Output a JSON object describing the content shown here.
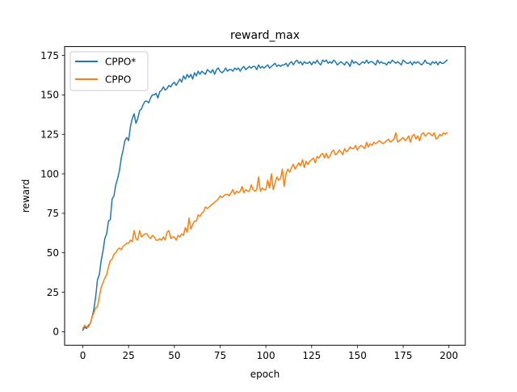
{
  "chart_data": {
    "type": "line",
    "title": "reward_max",
    "xlabel": "epoch",
    "ylabel": "reward",
    "xlim": [
      -9.95,
      208.95
    ],
    "ylim": [
      -8.6,
      180.6
    ],
    "xticks": [
      0,
      25,
      50,
      75,
      100,
      125,
      150,
      175,
      200
    ],
    "yticks": [
      0,
      25,
      50,
      75,
      100,
      125,
      150,
      175
    ],
    "grid": false,
    "legend_position": "top-left",
    "series": [
      {
        "name": "CPPO*",
        "color": "#1f77b4",
        "x": [
          0,
          1,
          2,
          3,
          4,
          5,
          6,
          7,
          8,
          9,
          10,
          11,
          12,
          13,
          14,
          15,
          16,
          17,
          18,
          19,
          20,
          21,
          22,
          23,
          24,
          25,
          26,
          27,
          28,
          29,
          30,
          31,
          32,
          33,
          34,
          35,
          36,
          37,
          38,
          39,
          40,
          41,
          42,
          43,
          44,
          45,
          46,
          47,
          48,
          49,
          50,
          51,
          52,
          53,
          54,
          55,
          56,
          57,
          58,
          59,
          60,
          61,
          62,
          63,
          64,
          65,
          66,
          67,
          68,
          69,
          70,
          71,
          72,
          73,
          74,
          75,
          76,
          77,
          78,
          79,
          80,
          81,
          82,
          83,
          84,
          85,
          86,
          87,
          88,
          89,
          90,
          91,
          92,
          93,
          94,
          95,
          96,
          97,
          98,
          99,
          100,
          101,
          102,
          103,
          104,
          105,
          106,
          107,
          108,
          109,
          110,
          111,
          112,
          113,
          114,
          115,
          116,
          117,
          118,
          119,
          120,
          121,
          122,
          123,
          124,
          125,
          126,
          127,
          128,
          129,
          130,
          131,
          132,
          133,
          134,
          135,
          136,
          137,
          138,
          139,
          140,
          141,
          142,
          143,
          144,
          145,
          146,
          147,
          148,
          149,
          150,
          151,
          152,
          153,
          154,
          155,
          156,
          157,
          158,
          159,
          160,
          161,
          162,
          163,
          164,
          165,
          166,
          167,
          168,
          169,
          170,
          171,
          172,
          173,
          174,
          175,
          176,
          177,
          178,
          179,
          180,
          181,
          182,
          183,
          184,
          185,
          186,
          187,
          188,
          189,
          190,
          191,
          192,
          193,
          194,
          195,
          196,
          197,
          198,
          199
        ],
        "values": [
          1,
          3,
          2,
          4,
          5,
          9,
          14,
          22,
          33,
          36,
          45,
          51,
          59,
          62,
          70,
          71,
          84,
          86,
          93,
          97,
          102,
          110,
          115,
          121,
          123,
          121,
          130,
          135,
          138,
          132,
          135,
          140,
          141,
          144,
          146,
          146,
          145,
          148,
          150,
          150,
          151,
          148,
          152,
          153,
          155,
          153,
          154,
          156,
          155,
          157,
          158,
          156,
          158,
          160,
          158,
          162,
          160,
          163,
          161,
          163,
          160,
          164,
          162,
          165,
          163,
          165,
          164,
          163,
          166,
          165,
          164,
          166,
          163,
          166,
          167,
          165,
          164,
          165,
          167,
          165,
          166,
          166,
          165,
          167,
          166,
          167,
          165,
          167,
          168,
          166,
          167,
          168,
          167,
          168,
          168,
          166,
          169,
          167,
          168,
          167,
          168,
          169,
          167,
          168,
          169,
          170,
          168,
          169,
          168,
          169,
          169,
          170,
          168,
          170,
          171,
          169,
          171,
          172,
          170,
          171,
          169,
          171,
          170,
          170,
          171,
          169,
          171,
          170,
          172,
          170,
          169,
          172,
          171,
          172,
          170,
          171,
          170,
          172,
          171,
          169,
          170,
          171,
          170,
          169,
          171,
          170,
          168,
          172,
          170,
          171,
          170,
          169,
          170,
          171,
          170,
          172,
          170,
          171,
          171,
          170,
          169,
          172,
          170,
          171,
          170,
          170,
          169,
          171,
          170,
          172,
          171,
          170,
          171,
          170,
          169,
          172,
          171,
          170,
          170,
          171,
          169,
          171,
          170,
          171,
          170,
          169,
          170,
          172,
          170,
          170,
          169,
          171,
          170,
          171,
          169,
          171,
          170,
          170,
          171,
          172
        ]
      },
      {
        "name": "CPPO",
        "color": "#ff7f0e",
        "x": [
          0,
          1,
          2,
          3,
          4,
          5,
          6,
          7,
          8,
          9,
          10,
          11,
          12,
          13,
          14,
          15,
          16,
          17,
          18,
          19,
          20,
          21,
          22,
          23,
          24,
          25,
          26,
          27,
          28,
          29,
          30,
          31,
          32,
          33,
          34,
          35,
          36,
          37,
          38,
          39,
          40,
          41,
          42,
          43,
          44,
          45,
          46,
          47,
          48,
          49,
          50,
          51,
          52,
          53,
          54,
          55,
          56,
          57,
          58,
          59,
          60,
          61,
          62,
          63,
          64,
          65,
          66,
          67,
          68,
          69,
          70,
          71,
          72,
          73,
          74,
          75,
          76,
          77,
          78,
          79,
          80,
          81,
          82,
          83,
          84,
          85,
          86,
          87,
          88,
          89,
          90,
          91,
          92,
          93,
          94,
          95,
          96,
          97,
          98,
          99,
          100,
          101,
          102,
          103,
          104,
          105,
          106,
          107,
          108,
          109,
          110,
          111,
          112,
          113,
          114,
          115,
          116,
          117,
          118,
          119,
          120,
          121,
          122,
          123,
          124,
          125,
          126,
          127,
          128,
          129,
          130,
          131,
          132,
          133,
          134,
          135,
          136,
          137,
          138,
          139,
          140,
          141,
          142,
          143,
          144,
          145,
          146,
          147,
          148,
          149,
          150,
          151,
          152,
          153,
          154,
          155,
          156,
          157,
          158,
          159,
          160,
          161,
          162,
          163,
          164,
          165,
          166,
          167,
          168,
          169,
          170,
          171,
          172,
          173,
          174,
          175,
          176,
          177,
          178,
          179,
          180,
          181,
          182,
          183,
          184,
          185,
          186,
          187,
          188,
          189,
          190,
          191,
          192,
          193,
          194,
          195,
          196,
          197,
          198,
          199
        ],
        "values": [
          2,
          4,
          3,
          3,
          5,
          9,
          12,
          15,
          16,
          22,
          28,
          31,
          34,
          36,
          41,
          45,
          46,
          49,
          50,
          52,
          53,
          52,
          54,
          55,
          56,
          56,
          58,
          57,
          64,
          59,
          58,
          64,
          60,
          61,
          62,
          62,
          60,
          59,
          61,
          60,
          58,
          58,
          59,
          58,
          60,
          58,
          63,
          64,
          59,
          60,
          60,
          58,
          61,
          60,
          62,
          61,
          66,
          63,
          72,
          65,
          68,
          70,
          70,
          74,
          73,
          75,
          76,
          79,
          78,
          79,
          80,
          81,
          82,
          83,
          84,
          86,
          85,
          86,
          87,
          87,
          86,
          88,
          90,
          87,
          89,
          88,
          89,
          92,
          88,
          90,
          89,
          89,
          93,
          90,
          89,
          90,
          98,
          89,
          91,
          90,
          90,
          96,
          91,
          100,
          90,
          94,
          98,
          96,
          97,
          103,
          92,
          100,
          103,
          101,
          104,
          106,
          103,
          105,
          107,
          105,
          109,
          104,
          108,
          106,
          108,
          109,
          110,
          107,
          111,
          110,
          112,
          113,
          110,
          113,
          110,
          111,
          114,
          115,
          112,
          113,
          115,
          114,
          112,
          116,
          114,
          115,
          117,
          116,
          116,
          118,
          115,
          117,
          118,
          117,
          116,
          120,
          117,
          119,
          118,
          120,
          119,
          120,
          121,
          120,
          119,
          120,
          121,
          122,
          120,
          121,
          122,
          126,
          120,
          121,
          122,
          123,
          121,
          122,
          124,
          120,
          124,
          125,
          122,
          124,
          121,
          125,
          126,
          124,
          125,
          126,
          125,
          124,
          126,
          122,
          123,
          125,
          124,
          126,
          125,
          126
        ]
      }
    ]
  }
}
